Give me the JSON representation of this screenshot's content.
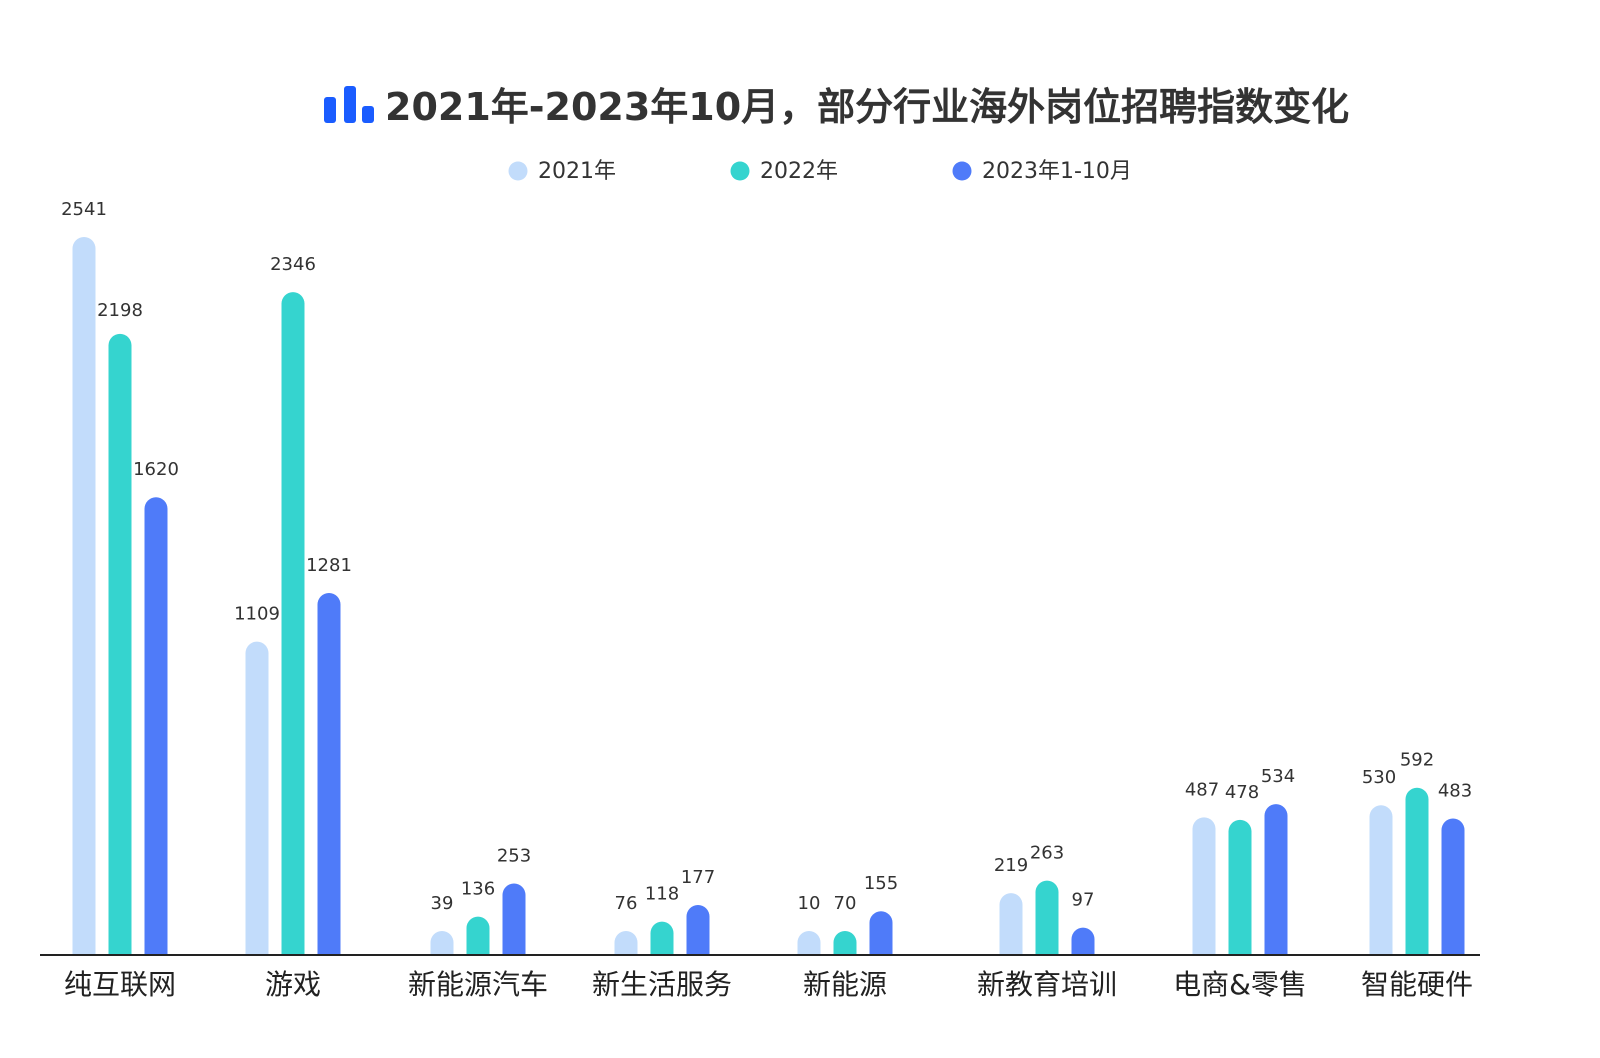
{
  "chart_data": {
    "type": "bar",
    "title": "2021年-2023年10月，部分行业海外岗位招聘指数变化",
    "title_icon": "bar-chart-icon",
    "categories": [
      "纯互联网",
      "游戏",
      "新能源汽车",
      "新生活服务",
      "新能源",
      "新教育培训",
      "电商&零售",
      "智能硬件"
    ],
    "series": [
      {
        "name": "2021年",
        "color": "#c2dcfb",
        "values": [
          2541,
          1109,
          39,
          76,
          10,
          219,
          487,
          530
        ]
      },
      {
        "name": "2022年",
        "color": "#35d4cf",
        "values": [
          2198,
          2346,
          136,
          118,
          70,
          263,
          478,
          592
        ]
      },
      {
        "name": "2023年1-10月",
        "color": "#4f7bf9",
        "values": [
          1620,
          1281,
          253,
          177,
          155,
          97,
          534,
          483
        ]
      }
    ],
    "legend_position": "top-center",
    "grid": false,
    "xlabel": "",
    "ylabel": "",
    "colors": {
      "title_icon": "#1a5cff",
      "axis_line": "#222222"
    }
  }
}
